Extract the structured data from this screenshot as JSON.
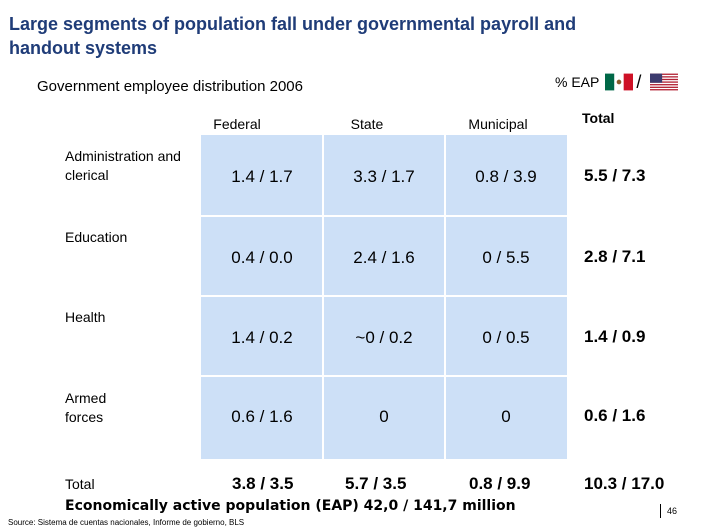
{
  "title": "Large segments of population fall under governmental payroll and handout systems",
  "subtitle": "Government employee distribution 2006",
  "eap_label": "% EAP",
  "legend_separator": "/",
  "columns": [
    "Federal",
    "State",
    "Municipal"
  ],
  "total_label": "Total",
  "rows": [
    {
      "label": "Administration and clerical",
      "cells": [
        "1.4 / 1.7",
        "3.3 / 1.7",
        "0.8 / 3.9"
      ],
      "total": "5.5 / 7.3"
    },
    {
      "label": "Education",
      "cells": [
        "0.4 / 0.0",
        "2.4 / 1.6",
        "0 / 5.5"
      ],
      "total": "2.8 / 7.1"
    },
    {
      "label": "Health",
      "cells": [
        "1.4 / 0.2",
        "~0 / 0.2",
        "0 / 0.5"
      ],
      "total": "1.4 / 0.9"
    },
    {
      "label": "Armed forces",
      "cells": [
        "0.6 / 1.6",
        "0",
        "0"
      ],
      "total": "0.6 / 1.6"
    }
  ],
  "totals_row": {
    "label": "Total",
    "cells": [
      "3.8 / 3.5",
      "5.7 / 3.5",
      "0.8 / 9.9"
    ],
    "total": "10.3 / 17.0"
  },
  "eap_note": "Economically active population (EAP)  42,0 / 141,7 million",
  "source": "Source: Sistema de cuentas nacionales, Informe de gobierno, BLS",
  "page_number": "46",
  "colors": {
    "title": "#1f3c78",
    "grid_fill": "#cde0f7"
  },
  "icons": [
    "mexico-flag-icon",
    "usa-flag-icon"
  ]
}
